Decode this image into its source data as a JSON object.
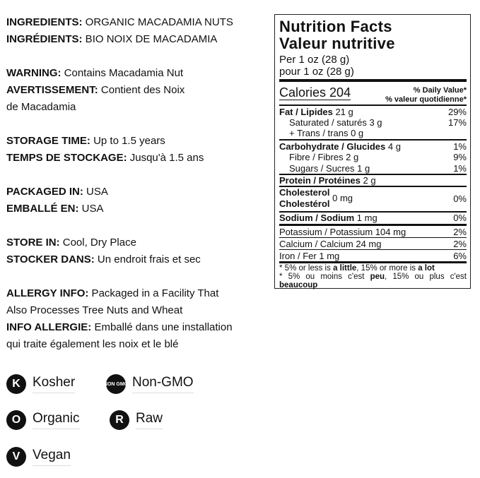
{
  "left": {
    "ingredients_label": "INGREDIENTS:",
    "ingredients": " ORGANIC MACADAMIA NUTS",
    "ingredients_fr_label": "INGRÉDIENTS:",
    "ingredients_fr": " BIO NOIX DE MACADAMIA",
    "warning_label": "WARNING:",
    "warning": " Contains Macadamia Nut",
    "warning_fr_label": "AVERTISSEMENT:",
    "warning_fr": " Contient des Noix",
    "warning_fr2": "de Macadamia",
    "storage_label": "STORAGE TIME:",
    "storage": " Up to 1.5 years",
    "storage_fr_label": "TEMPS DE STOCKAGE:",
    "storage_fr": " Jusqu'à 1.5 ans",
    "packaged_label": "PACKAGED IN:",
    "packaged": " USA",
    "packaged_fr_label": "EMBALLÉ EN:",
    "packaged_fr": " USA",
    "store_label": "STORE IN:",
    "store": " Cool, Dry Place",
    "store_fr_label": "STOCKER DANS:",
    "store_fr": " Un endroit frais et sec",
    "allergy_label": "ALLERGY INFO:",
    "allergy": " Packaged in a Facility That",
    "allergy2": "Also Processes Tree Nuts and Wheat",
    "allergy_fr_label": "INFO ALLERGIE:",
    "allergy_fr": " Emballé dans une installation",
    "allergy_fr2": "qui traite également les noix et le blé"
  },
  "nutrition": {
    "title": "Nutrition Facts",
    "title_fr": "Valeur nutritive",
    "serving": "Per 1 oz (28 g)",
    "serving_fr": "pour 1 oz (28 g)",
    "calories_label": "Calories",
    "calories": "204",
    "dv": "% Daily Value*",
    "dv_fr": "% valeur quotidienne*",
    "fat_label": "Fat / Lipides",
    "fat": " 21 g",
    "fat_pct": "29%",
    "sat": "Saturated / saturés 3 g",
    "sat_pct": "17%",
    "trans": "+ Trans / trans 0 g",
    "carb_label": "Carbohydrate / Glucides",
    "carb": " 4 g",
    "carb_pct": "1%",
    "fibre": "Fibre / Fibres 2 g",
    "fibre_pct": "9%",
    "sugars": "Sugars / Sucres 1 g",
    "sugars_pct": "1%",
    "protein_label": "Protein / Protéines",
    "protein": " 2 g",
    "chol_label": "Cholesterol",
    "chol_label_fr": "Cholestérol",
    "chol": "0 mg",
    "chol_pct": "0%",
    "sodium_label": "Sodium / Sodium",
    "sodium": " 1 mg",
    "sodium_pct": "0%",
    "potassium": "Potassium / Potassium 104 mg",
    "potassium_pct": "2%",
    "calcium": "Calcium / Calcium 24 mg",
    "calcium_pct": "2%",
    "iron": "Iron / Fer 1 mg",
    "iron_pct": "6%",
    "foot1a": "* 5% or less is ",
    "foot1b": "a little",
    "foot1c": ", 15% or more is ",
    "foot1d": "a lot",
    "foot2a": "* 5% ou moins c'est ",
    "foot2b": "peu",
    "foot2c": ", 15% ou plus c'est",
    "foot2d": "beaucoup"
  },
  "badges": [
    {
      "icon": "K",
      "label": "Kosher"
    },
    {
      "icon": "NON GMO",
      "label": "Non-GMO"
    },
    {
      "icon": "O",
      "label": "Organic"
    },
    {
      "icon": "R",
      "label": "Raw"
    },
    {
      "icon": "V",
      "label": "Vegan"
    }
  ]
}
